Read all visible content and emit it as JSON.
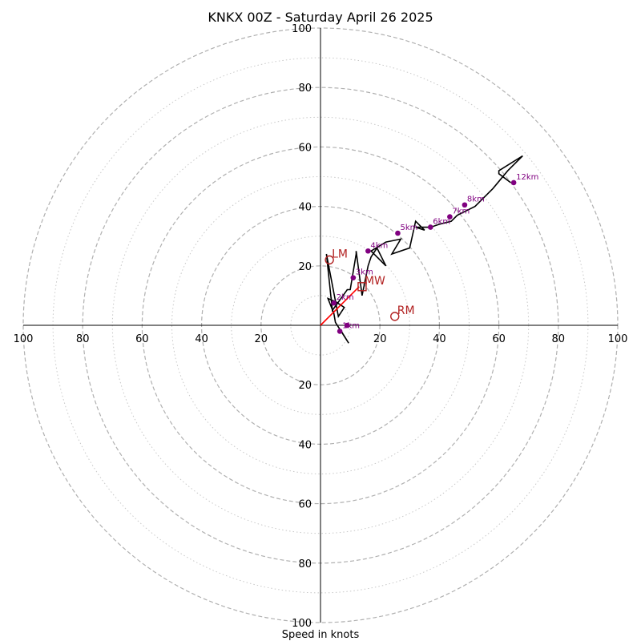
{
  "chart_data": {
    "type": "line",
    "title": "KNKX 00Z - Saturday April 26 2025",
    "xlabel": "Speed in knots",
    "ylabel": "",
    "units": "knots",
    "xlim": [
      -100,
      100
    ],
    "ylim": [
      -100,
      100
    ],
    "rings": {
      "major": [
        20,
        40,
        60,
        80,
        100
      ],
      "minor": [
        10,
        30,
        50,
        70,
        90
      ]
    },
    "x_ticks": [
      "100",
      "80",
      "60",
      "40",
      "20",
      "20",
      "40",
      "60",
      "80",
      "100"
    ],
    "x_tick_values": [
      -100,
      -80,
      -60,
      -40,
      -20,
      20,
      40,
      60,
      80,
      100
    ],
    "y_ticks": [
      "100",
      "80",
      "60",
      "40",
      "20",
      "20",
      "40",
      "60",
      "80",
      "100"
    ],
    "y_tick_values": [
      100,
      80,
      60,
      40,
      20,
      -20,
      -40,
      -60,
      -80,
      -100
    ],
    "series": [
      {
        "u": [
          7,
          9.5,
          9.5,
          5,
          4.5,
          2.5,
          5,
          8,
          6,
          2,
          4,
          9,
          10,
          12,
          12,
          14,
          16,
          17,
          19,
          22,
          17,
          22,
          27,
          24,
          30,
          32,
          35,
          32,
          37,
          40,
          44,
          46,
          52,
          58,
          63,
          68,
          60,
          60,
          64
        ],
        "v": [
          -2,
          -6,
          -6,
          1,
          4,
          9,
          8,
          6,
          3,
          24,
          5,
          12,
          12,
          24,
          25,
          10,
          20,
          23,
          26,
          20,
          25,
          28,
          29,
          24,
          26,
          35,
          32,
          33,
          33,
          34,
          35,
          37,
          40,
          46,
          52,
          57,
          52,
          51,
          48
        ]
      }
    ],
    "height_points": [
      {
        "label": "1km",
        "u": 6.5,
        "v": -2
      },
      {
        "label": "",
        "u": 9,
        "v": 0
      },
      {
        "label": "2km",
        "u": 4.5,
        "v": 7.5
      },
      {
        "label": "3km",
        "u": 11,
        "v": 16
      },
      {
        "label": "4km",
        "u": 16,
        "v": 25
      },
      {
        "label": "5km",
        "u": 26,
        "v": 31
      },
      {
        "label": "6km",
        "u": 37,
        "v": 33
      },
      {
        "label": "7km",
        "u": 43.5,
        "v": 36.5
      },
      {
        "label": "8km",
        "u": 48.5,
        "v": 40.5
      },
      {
        "label": "12km",
        "u": 65,
        "v": 48
      }
    ],
    "storm_motion": [
      {
        "label": "LM",
        "u": 3,
        "v": 22,
        "marker": "circle"
      },
      {
        "label": "MW",
        "u": 14,
        "v": 13,
        "marker": "square"
      },
      {
        "label": "RM",
        "u": 25,
        "v": 3,
        "marker": "circle"
      }
    ],
    "shear_vector": {
      "u0": 0,
      "v0": 0,
      "u1": 13,
      "v1": 13
    },
    "colors": {
      "hodograph": "#000000",
      "height_markers": "#800080",
      "storm_motion": "#b22222",
      "shear_vector": "#ff0000",
      "rings": "#b0b0b0"
    }
  }
}
